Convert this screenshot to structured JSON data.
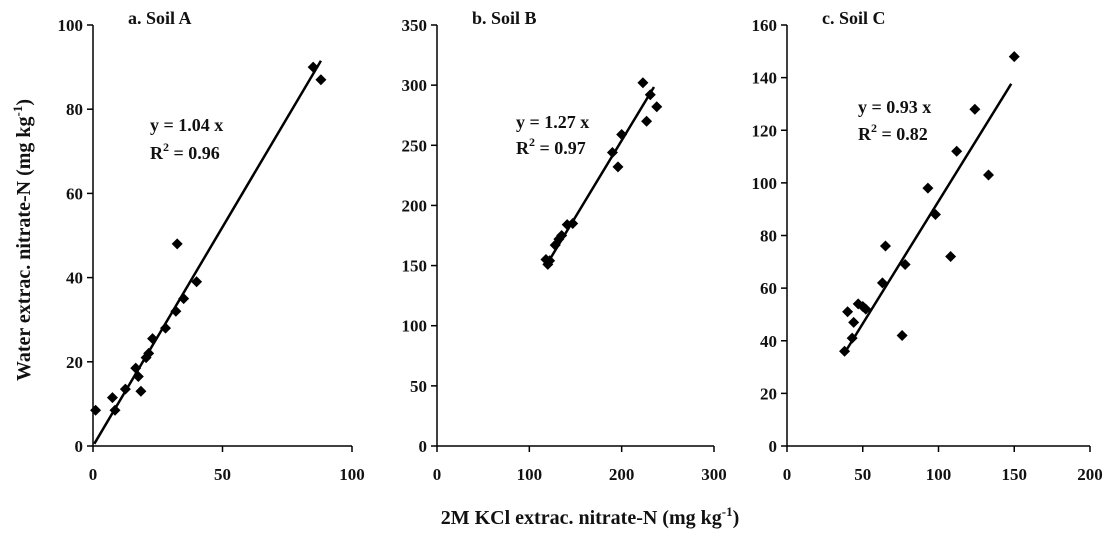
{
  "ylabel": "Water extrac. nitrate-N (mg kg",
  "ylabel_sup": "-1",
  "ylabel_close": ")",
  "xlabel": "2M KCl extrac. nitrate-N (mg kg",
  "xlabel_sup": "-1",
  "xlabel_close": ")",
  "chart_data": [
    {
      "type": "scatter",
      "title": "a. Soil A",
      "equation": "y = 1.04 x",
      "r2_label": "R",
      "r2_value": " = 0.96",
      "slope": 1.04,
      "xlim": [
        0,
        100
      ],
      "ylim": [
        0,
        100
      ],
      "xticks": [
        0,
        50,
        100
      ],
      "yticks": [
        0,
        20,
        40,
        60,
        80,
        100
      ],
      "points": [
        [
          1,
          8.5
        ],
        [
          7.5,
          11.5
        ],
        [
          8.5,
          8.5
        ],
        [
          12.5,
          13.5
        ],
        [
          16.5,
          18.5
        ],
        [
          17.5,
          16.5
        ],
        [
          18.5,
          13
        ],
        [
          20.5,
          21
        ],
        [
          21.5,
          22
        ],
        [
          23,
          25.5
        ],
        [
          28,
          28
        ],
        [
          32,
          32
        ],
        [
          32.5,
          48
        ],
        [
          35,
          35
        ],
        [
          40,
          39
        ],
        [
          85,
          90
        ],
        [
          88,
          87
        ]
      ],
      "fit_x": [
        0.5,
        88
      ]
    },
    {
      "type": "scatter",
      "title": "b. Soil B",
      "equation": "y = 1.27 x",
      "r2_label": "R",
      "r2_value": " = 0.97",
      "slope": 1.27,
      "xlim": [
        0,
        300
      ],
      "ylim": [
        0,
        350
      ],
      "xticks": [
        0,
        100,
        200,
        300
      ],
      "yticks": [
        0,
        50,
        100,
        150,
        200,
        250,
        300,
        350
      ],
      "points": [
        [
          118,
          155
        ],
        [
          120,
          151
        ],
        [
          122,
          154
        ],
        [
          128,
          167
        ],
        [
          132,
          172
        ],
        [
          135,
          175
        ],
        [
          141,
          184
        ],
        [
          147,
          185
        ],
        [
          190,
          244
        ],
        [
          196,
          232
        ],
        [
          200,
          259
        ],
        [
          223,
          302
        ],
        [
          227,
          270
        ],
        [
          231,
          292
        ],
        [
          238,
          282
        ]
      ],
      "fit_x": [
        118,
        235
      ]
    },
    {
      "type": "scatter",
      "title": "c. Soil C",
      "equation": "y = 0.93 x",
      "r2_label": "R",
      "r2_value": " = 0.82",
      "slope": 0.93,
      "xlim": [
        0,
        200
      ],
      "ylim": [
        0,
        160
      ],
      "xticks": [
        0,
        50,
        100,
        150,
        200
      ],
      "yticks": [
        0,
        20,
        40,
        60,
        80,
        100,
        120,
        140,
        160
      ],
      "points": [
        [
          38,
          36
        ],
        [
          40,
          51
        ],
        [
          43,
          41
        ],
        [
          44,
          47
        ],
        [
          47,
          54
        ],
        [
          50,
          53
        ],
        [
          52,
          52
        ],
        [
          63,
          62
        ],
        [
          65,
          76
        ],
        [
          76,
          42
        ],
        [
          78,
          69
        ],
        [
          93,
          98
        ],
        [
          98,
          88
        ],
        [
          108,
          72
        ],
        [
          112,
          112
        ],
        [
          124,
          128
        ],
        [
          133,
          103
        ],
        [
          150,
          148
        ]
      ],
      "fit_x": [
        38,
        148
      ]
    }
  ]
}
